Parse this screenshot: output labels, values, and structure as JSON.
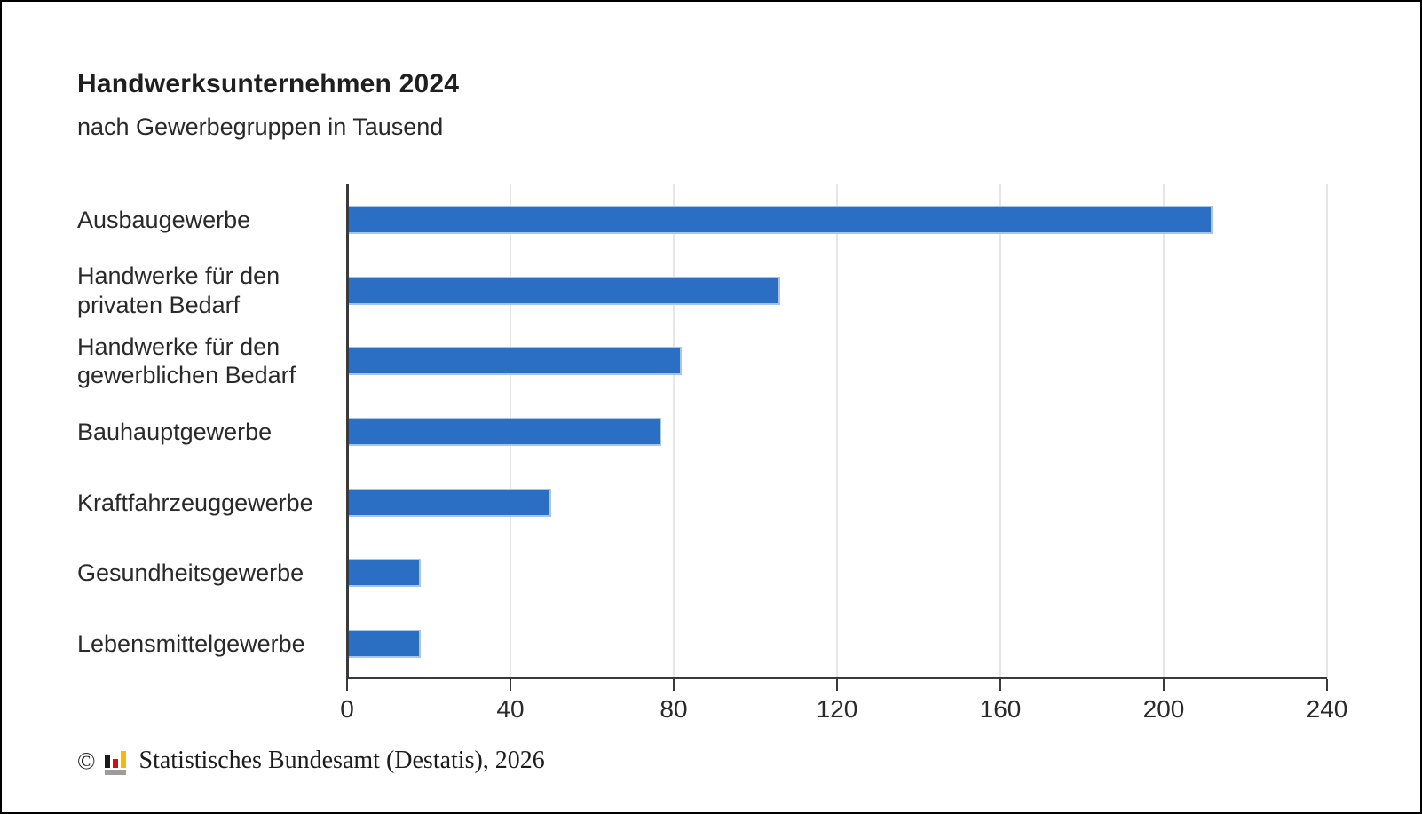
{
  "chart": {
    "title": "Handwerksunternehmen 2024",
    "subtitle": "nach Gewerbegruppen in Tausend",
    "footer": {
      "copyright_symbol": "©",
      "logo_icon": "destatis-bars-logo",
      "source_text": "Statistisches Bundesamt (Destatis), 2026"
    },
    "colors": {
      "bar_fill": "#2a6fc3",
      "bar_edge": "#a5c5eb",
      "axis": "#3a3a3a",
      "gridline": "#e6e6e6",
      "text": "#2a2a2a",
      "logo_black": "#1a1a1a",
      "logo_red": "#d40f14",
      "logo_yellow": "#f8ba00",
      "logo_base_gray": "#9c9c9c"
    }
  },
  "chart_data": {
    "type": "bar",
    "orientation": "horizontal",
    "title": "Handwerksunternehmen 2024",
    "subtitle": "nach Gewerbegruppen in Tausend",
    "unit": "Tausend",
    "categories": [
      "Ausbaugewerbe",
      "Handwerke für den privaten Bedarf",
      "Handwerke für den gewerblichen Bedarf",
      "Bauhauptgewerbe",
      "Kraftfahrzeuggewerbe",
      "Gesundheitsgewerbe",
      "Lebensmittelgewerbe"
    ],
    "values": [
      212,
      106,
      82,
      77,
      50,
      18,
      18
    ],
    "xlabel": "",
    "ylabel": "",
    "xlim": [
      0,
      240
    ],
    "xticks": [
      0,
      40,
      80,
      120,
      160,
      200,
      240
    ],
    "grid": true,
    "legend": null
  }
}
